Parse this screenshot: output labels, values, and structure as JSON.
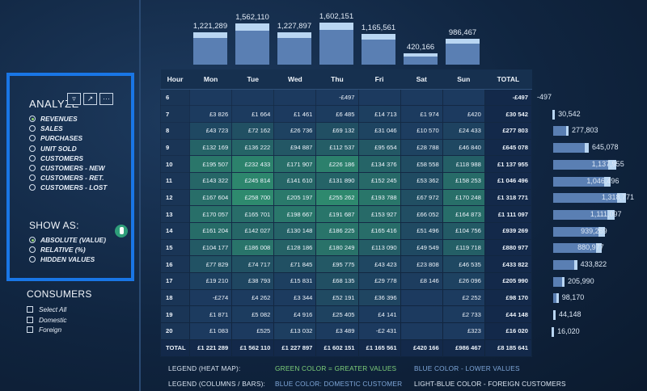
{
  "slicer": {
    "header": "ANALYZE",
    "options": [
      {
        "label": "REVENUES",
        "selected": true
      },
      {
        "label": "SALES",
        "selected": false
      },
      {
        "label": "PURCHASES",
        "selected": false
      },
      {
        "label": "UNIT SOLD",
        "selected": false
      },
      {
        "label": "CUSTOMERS",
        "selected": false
      },
      {
        "label": "CUSTOMERS - NEW",
        "selected": false
      },
      {
        "label": "CUSTOMERS - RET.",
        "selected": false
      },
      {
        "label": "CUSTOMERS - LOST",
        "selected": false
      }
    ],
    "tools": {
      "filter_icon": "filter-icon",
      "focus_icon": "focus-mode-icon",
      "more": "···"
    }
  },
  "show_as": {
    "header": "SHOW AS:",
    "options": [
      {
        "label": "ABSOLUTE (VALUE)",
        "selected": true
      },
      {
        "label": "RELATIVE (%)",
        "selected": false
      },
      {
        "label": "HIDDEN VALUES",
        "selected": false
      }
    ]
  },
  "consumers": {
    "header": "CONSUMERS",
    "options": [
      "Select All",
      "Domestic",
      "Foreign"
    ]
  },
  "day_bars": {
    "labels": [
      "1,221,289",
      "1,562,110",
      "1,227,897",
      "1,602,151",
      "1,165,561",
      "420,166",
      "986,467"
    ],
    "domestic": [
      1181289,
      1522110,
      1187897,
      1562151,
      1125561,
      380166,
      946467
    ],
    "foreign": [
      40000,
      40000,
      40000,
      40000,
      40000,
      40000,
      40000
    ],
    "max": 1602151
  },
  "matrix": {
    "headers": [
      "Hour",
      "Mon",
      "Tue",
      "Wed",
      "Thu",
      "Fri",
      "Sat",
      "Sun",
      "TOTAL"
    ],
    "rows": [
      [
        "6",
        "",
        "",
        "",
        "-£497",
        "",
        "",
        "",
        "-£497"
      ],
      [
        "7",
        "£3 826",
        "£1 664",
        "£1 461",
        "£6 485",
        "£14 713",
        "£1 974",
        "£420",
        "£30 542"
      ],
      [
        "8",
        "£43 723",
        "£72 162",
        "£26 736",
        "£69 132",
        "£31 046",
        "£10 570",
        "£24 433",
        "£277 803"
      ],
      [
        "9",
        "£132 169",
        "£136 222",
        "£94 887",
        "£112 537",
        "£95 654",
        "£28 788",
        "£46 840",
        "£645 078"
      ],
      [
        "10",
        "£195 507",
        "£232 433",
        "£171 907",
        "£226 186",
        "£134 376",
        "£58 558",
        "£118 988",
        "£1 137 955"
      ],
      [
        "11",
        "£143 322",
        "£245 814",
        "£141 610",
        "£131 890",
        "£152 245",
        "£53 362",
        "£158 253",
        "£1 046 496"
      ],
      [
        "12",
        "£167 604",
        "£258 700",
        "£205 197",
        "£255 262",
        "£193 788",
        "£67 972",
        "£170 248",
        "£1 318 771"
      ],
      [
        "13",
        "£170 057",
        "£165 701",
        "£198 667",
        "£191 687",
        "£153 927",
        "£66 052",
        "£164 873",
        "£1 111 097"
      ],
      [
        "14",
        "£161 204",
        "£142 027",
        "£130 148",
        "£186 225",
        "£165 416",
        "£51 496",
        "£104 756",
        "£939 269"
      ],
      [
        "15",
        "£104 177",
        "£186 008",
        "£128 186",
        "£180 249",
        "£113 090",
        "£49 549",
        "£119 718",
        "£880 977"
      ],
      [
        "16",
        "£77 829",
        "£74 717",
        "£71 845",
        "£95 775",
        "£43 423",
        "£23 808",
        "£46 535",
        "£433 822"
      ],
      [
        "17",
        "£19 210",
        "£38 793",
        "£15 831",
        "£68 135",
        "£29 778",
        "£8 146",
        "£26 096",
        "£205 990"
      ],
      [
        "18",
        "-£274",
        "£4 262",
        "£3 344",
        "£52 191",
        "£36 396",
        "",
        "£2 252",
        "£98 170"
      ],
      [
        "19",
        "£1 871",
        "£5 082",
        "£4 916",
        "£25 405",
        "£4 141",
        "",
        "£2 733",
        "£44 148"
      ],
      [
        "20",
        "£1 083",
        "£525",
        "£13 032",
        "£3 489",
        "-£2 431",
        "",
        "£323",
        "£16 020"
      ]
    ],
    "total_row": [
      "TOTAL",
      "£1 221 289",
      "£1 562 110",
      "£1 227 897",
      "£1 602 151",
      "£1 165 561",
      "£420 166",
      "£986 467",
      "£8 185 641"
    ],
    "heat_values": [
      [
        0,
        0,
        0,
        -497,
        0,
        0,
        0
      ],
      [
        3826,
        1664,
        1461,
        6485,
        14713,
        1974,
        420
      ],
      [
        43723,
        72162,
        26736,
        69132,
        31046,
        10570,
        24433
      ],
      [
        132169,
        136222,
        94887,
        112537,
        95654,
        28788,
        46840
      ],
      [
        195507,
        232433,
        171907,
        226186,
        134376,
        58558,
        118988
      ],
      [
        143322,
        245814,
        141610,
        131890,
        152245,
        53362,
        158253
      ],
      [
        167604,
        258700,
        205197,
        255262,
        193788,
        67972,
        170248
      ],
      [
        170057,
        165701,
        198667,
        191687,
        153927,
        66052,
        164873
      ],
      [
        161204,
        142027,
        130148,
        186225,
        165416,
        51496,
        104756
      ],
      [
        104177,
        186008,
        128186,
        180249,
        113090,
        49549,
        119718
      ],
      [
        77829,
        74717,
        71845,
        95775,
        43423,
        23808,
        46535
      ],
      [
        19210,
        38793,
        15831,
        68135,
        29778,
        8146,
        26096
      ],
      [
        -274,
        4262,
        3344,
        52191,
        36396,
        0,
        2252
      ],
      [
        1871,
        5082,
        4916,
        25405,
        4141,
        0,
        2733
      ],
      [
        1083,
        525,
        13032,
        3489,
        -2431,
        0,
        323
      ]
    ]
  },
  "hour_bars": {
    "labels": [
      "-497",
      "30,542",
      "277,803",
      "645,078",
      "1,137,955",
      "1,046,496",
      "1,318,771",
      "1,111,097",
      "939,269",
      "880,977",
      "433,822",
      "205,990",
      "98,170",
      "44,148",
      "16,020"
    ],
    "values": [
      -497,
      30542,
      277803,
      645078,
      1137955,
      1046496,
      1318771,
      1111097,
      939269,
      880977,
      433822,
      205990,
      98170,
      44148,
      16020
    ],
    "max": 1318771
  },
  "legend": {
    "heat_label": "LEGEND (HEAT MAP):",
    "heat_green": "GREEN COLOR = GREATER VALUES",
    "heat_blue": "BLUE COLOR - LOWER VALUES",
    "bars_label": "LEGEND (COLUMNS / BARS):",
    "bars_blue": "BLUE COLOR: DOMESTIC CUSTOMER",
    "bars_light": "LIGHT-BLUE COLOR - FOREIGN CUSTOMERS"
  },
  "colors": {
    "accent": "#1976e6",
    "domestic": "#5a7fb3",
    "foreign": "#b9d6f2",
    "heat_high": "#2e8a6e",
    "heat_low": "#1c3a5f"
  }
}
